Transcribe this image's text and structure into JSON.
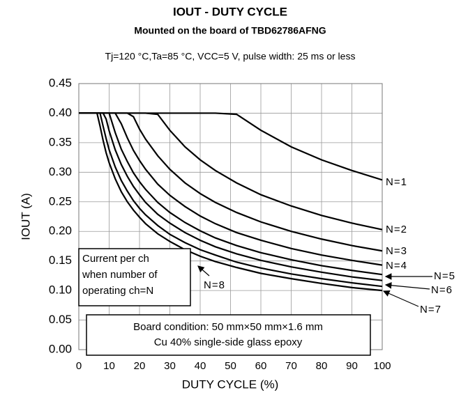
{
  "chart_data": {
    "type": "line",
    "title": "IOUT - DUTY CYCLE",
    "subtitle": "Mounted on the board of TBD62786AFNG",
    "conditions": "Tj=120 °C,Ta=85 °C, VCC=5 V, pulse width: 25 ms or less",
    "xlabel": "DUTY CYCLE (%)",
    "ylabel": "IOUT (A)",
    "annotations": [
      [
        "Current per ch",
        "when number of",
        "operating ch=N"
      ],
      [
        "Board condition: 50 mm×50 mm×1.6 mm",
        "Cu 40% single-side glass epoxy"
      ]
    ],
    "x": [
      0,
      5,
      6,
      7,
      8,
      9,
      10,
      12,
      14,
      16,
      18,
      20,
      22,
      26,
      30,
      35,
      40,
      45,
      52,
      60,
      70,
      80,
      90,
      100
    ],
    "series": [
      {
        "name": "N=1",
        "color": "#000000",
        "values": [
          0.4,
          0.4,
          0.4,
          0.4,
          0.4,
          0.4,
          0.4,
          0.4,
          0.4,
          0.4,
          0.4,
          0.4,
          0.4,
          0.4,
          0.4,
          0.4,
          0.4,
          0.4,
          0.398,
          0.371,
          0.343,
          0.321,
          0.303,
          0.287
        ]
      },
      {
        "name": "N=2",
        "color": "#000000",
        "values": [
          0.4,
          0.4,
          0.4,
          0.4,
          0.4,
          0.4,
          0.4,
          0.4,
          0.4,
          0.4,
          0.4,
          0.4,
          0.4,
          0.398,
          0.371,
          0.343,
          0.321,
          0.303,
          0.282,
          0.262,
          0.243,
          0.227,
          0.214,
          0.203
        ]
      },
      {
        "name": "N=3",
        "color": "#000000",
        "values": [
          0.4,
          0.4,
          0.4,
          0.4,
          0.4,
          0.4,
          0.4,
          0.4,
          0.4,
          0.4,
          0.394,
          0.373,
          0.356,
          0.328,
          0.305,
          0.282,
          0.264,
          0.249,
          0.232,
          0.216,
          0.2,
          0.187,
          0.176,
          0.167
        ]
      },
      {
        "name": "N=4",
        "color": "#000000",
        "values": [
          0.4,
          0.4,
          0.4,
          0.4,
          0.4,
          0.4,
          0.4,
          0.4,
          0.382,
          0.358,
          0.337,
          0.32,
          0.305,
          0.28,
          0.261,
          0.242,
          0.226,
          0.213,
          0.198,
          0.185,
          0.171,
          0.16,
          0.151,
          0.143
        ]
      },
      {
        "name": "N=5",
        "color": "#000000",
        "values": [
          0.4,
          0.4,
          0.4,
          0.4,
          0.4,
          0.4,
          0.4,
          0.367,
          0.339,
          0.318,
          0.299,
          0.284,
          0.271,
          0.249,
          0.232,
          0.215,
          0.201,
          0.189,
          0.176,
          0.164,
          0.152,
          0.142,
          0.134,
          0.127
        ]
      },
      {
        "name": "N=6",
        "color": "#000000",
        "values": [
          0.4,
          0.4,
          0.4,
          0.4,
          0.4,
          0.39,
          0.37,
          0.338,
          0.313,
          0.293,
          0.276,
          0.262,
          0.249,
          0.229,
          0.214,
          0.198,
          0.185,
          0.174,
          0.162,
          0.151,
          0.14,
          0.131,
          0.123,
          0.117
        ]
      },
      {
        "name": "N=7",
        "color": "#000000",
        "values": [
          0.4,
          0.4,
          0.4,
          0.4,
          0.378,
          0.357,
          0.338,
          0.309,
          0.286,
          0.268,
          0.252,
          0.239,
          0.228,
          0.21,
          0.195,
          0.181,
          0.169,
          0.16,
          0.148,
          0.138,
          0.128,
          0.12,
          0.113,
          0.107
        ]
      },
      {
        "name": "N=8",
        "color": "#000000",
        "values": [
          0.4,
          0.4,
          0.4,
          0.378,
          0.354,
          0.333,
          0.316,
          0.289,
          0.267,
          0.25,
          0.236,
          0.224,
          0.213,
          0.196,
          0.183,
          0.169,
          0.158,
          0.149,
          0.139,
          0.129,
          0.12,
          0.112,
          0.105,
          0.1
        ]
      }
    ],
    "xlim": [
      0,
      100
    ],
    "xticks": [
      0,
      10,
      20,
      30,
      40,
      50,
      60,
      70,
      80,
      90,
      100
    ],
    "ylim": [
      0,
      0.45
    ],
    "yticks": [
      {
        "value": 0,
        "label": "0.00"
      },
      {
        "value": 0.05,
        "label": "0.05"
      },
      {
        "value": 0.1,
        "label": "0.10"
      },
      {
        "value": 0.15,
        "label": "0.15"
      },
      {
        "value": 0.2,
        "label": "0.20"
      },
      {
        "value": 0.25,
        "label": "0.25"
      },
      {
        "value": 0.3,
        "label": "0.30"
      },
      {
        "value": 0.35,
        "label": "0.35"
      },
      {
        "value": 0.4,
        "label": "0.40"
      },
      {
        "value": 0.45,
        "label": "0.45"
      }
    ],
    "grid": true
  }
}
